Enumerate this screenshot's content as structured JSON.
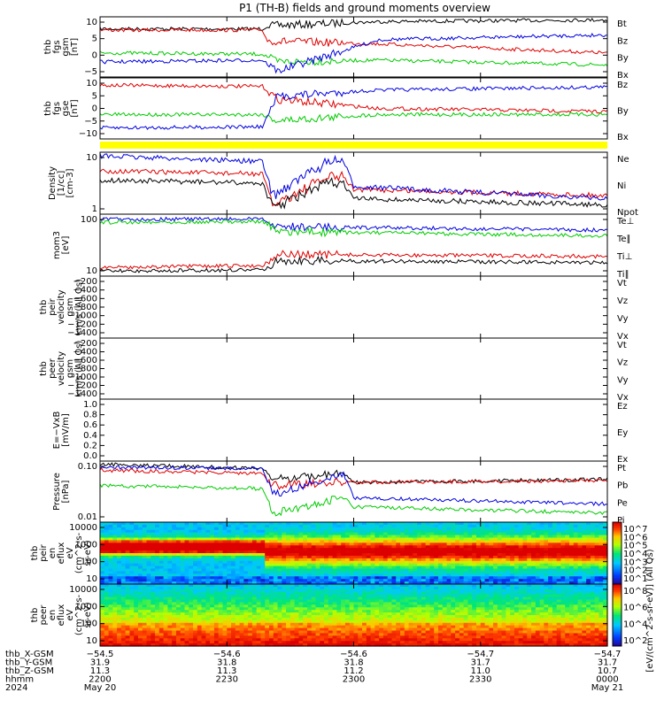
{
  "title": "P1 (TH-B) fields and ground moments overview",
  "colors": {
    "black": "#000000",
    "red": "#e00000",
    "green": "#00cc00",
    "blue": "#0000e0",
    "yellow": "#ffff00"
  },
  "chart_data": [
    {
      "type": "line",
      "panel": "fgs_gsm",
      "ylabel": [
        "thb",
        "fgs",
        "gsm",
        "[nT]"
      ],
      "yticks": [
        "10",
        "5",
        "0",
        "−5"
      ],
      "ylim": [
        -7,
        13
      ],
      "legend": [
        "Bt",
        "Bz",
        "By",
        "Bx"
      ],
      "series": [
        {
          "name": "Bt",
          "color": "#000000"
        },
        {
          "name": "Bz",
          "color": "#e00000"
        },
        {
          "name": "By",
          "color": "#00cc00"
        },
        {
          "name": "Bx",
          "color": "#0000e0"
        }
      ]
    },
    {
      "type": "line",
      "panel": "fgs_gse",
      "ylabel": [
        "thb",
        "fgs",
        "gse",
        "[nT]"
      ],
      "yticks": [
        "10",
        "5",
        "0",
        "−5",
        "−10"
      ],
      "ylim": [
        -12,
        11
      ],
      "legend": [
        "Bz",
        "By",
        "Bx"
      ],
      "series": [
        {
          "name": "Bz",
          "color": "#e00000"
        },
        {
          "name": "By",
          "color": "#00cc00"
        },
        {
          "name": "Bx",
          "color": "#0000e0"
        }
      ]
    },
    {
      "type": "line",
      "panel": "density",
      "ylabel": [
        "Density",
        "[1/cc]",
        "[cm-3]"
      ],
      "yticks": [
        "10",
        "1"
      ],
      "log": true,
      "legend": [
        "Ne",
        "Ni",
        "Npot"
      ],
      "series": [
        {
          "name": "Ne",
          "color": "#e00000"
        },
        {
          "name": "Ni",
          "color": "#000000"
        },
        {
          "name": "Npot",
          "color": "#0000e0"
        }
      ]
    },
    {
      "type": "line",
      "panel": "temperature",
      "ylabel": [
        "mom3",
        "[eV]"
      ],
      "yticks": [
        "100",
        "10"
      ],
      "log": true,
      "legend": [
        "Te⊥",
        "Te∥",
        "Ti⊥",
        "Ti∥"
      ],
      "series": [
        {
          "name": "Te⊥",
          "color": "#e00000"
        },
        {
          "name": "Te∥",
          "color": "#000000"
        },
        {
          "name": "Ti⊥",
          "color": "#0000e0"
        },
        {
          "name": "Ti∥",
          "color": "#00cc00"
        }
      ]
    },
    {
      "type": "line",
      "panel": "peir_velocity",
      "ylabel": [
        "thb",
        "peir",
        "velocity",
        "gsm",
        "km/s (All Qs)"
      ],
      "yticks": [
        "−200",
        "−400",
        "−600",
        "−800",
        "−1000",
        "−1200",
        "−1400"
      ],
      "ylim": [
        -1450,
        -100
      ],
      "legend": [
        "Vt",
        "Vz",
        "Vy",
        "Vx"
      ]
    },
    {
      "type": "line",
      "panel": "peer_velocity",
      "ylabel": [
        "thb",
        "peer",
        "velocity",
        "gsm",
        "km/s (All Qs)"
      ],
      "yticks": [
        "−200",
        "−400",
        "−600",
        "−800",
        "−1000",
        "−1200",
        "−1400"
      ],
      "ylim": [
        -1450,
        -100
      ],
      "legend": [
        "Vt",
        "Vz",
        "Vy",
        "Vx"
      ]
    },
    {
      "type": "line",
      "panel": "efield",
      "ylabel": [
        "E=−VxB",
        "[mV/m]"
      ],
      "yticks": [
        "1.0",
        "0.8",
        "0.6",
        "0.4",
        "0.2",
        "0.0"
      ],
      "ylim": [
        0,
        1
      ],
      "legend": [
        "Ez",
        "Ey",
        "Ex"
      ]
    },
    {
      "type": "line",
      "panel": "pressure",
      "ylabel": [
        "Pressure",
        "[nPa]"
      ],
      "yticks": [
        "0.10",
        "0.01"
      ],
      "log": true,
      "legend": [
        "Pt",
        "Pb",
        "Pe",
        "Pi"
      ],
      "series": [
        {
          "name": "Pt",
          "color": "#000000"
        },
        {
          "name": "Pb",
          "color": "#e00000"
        },
        {
          "name": "Pe",
          "color": "#00cc00"
        },
        {
          "name": "Pi",
          "color": "#0000e0"
        }
      ]
    },
    {
      "type": "heatmap",
      "panel": "peir_eflux",
      "ylabel": [
        "thb",
        "peir",
        "en",
        "eflux",
        "eV",
        "(cm^2-s-",
        "sr-eV)"
      ],
      "yticks": [
        "10000",
        "1000",
        "100",
        "10"
      ],
      "log": true,
      "colorbar_ticks": [
        "10^7",
        "10^6",
        "10^5",
        "10^4",
        "10^3",
        "10^2",
        "10^1"
      ]
    },
    {
      "type": "heatmap",
      "panel": "peer_eflux",
      "ylabel": [
        "thb",
        "peer",
        "en",
        "eflux",
        "eV",
        "(cm^2-s-",
        "sr-eV)"
      ],
      "yticks": [
        "10000",
        "1000",
        "100",
        "10"
      ],
      "log": true,
      "colorbar_ticks": [
        "10^8",
        "10^6",
        "10^4",
        "10^2"
      ]
    }
  ],
  "colorbar_label": "[eV/(cm^2-s-sr-eV)] (All Qs)",
  "time_axis": {
    "rows": [
      {
        "label": "thb_X-GSM",
        "values": [
          "−54.5",
          "−54.6",
          "−54.6",
          "−54.7",
          "−54.7"
        ]
      },
      {
        "label": "thb_Y-GSM",
        "values": [
          "31.9",
          "31.8",
          "31.8",
          "31.7",
          "31.7"
        ]
      },
      {
        "label": "thb_Z-GSM",
        "values": [
          "11.3",
          "11.3",
          "11.2",
          "11.0",
          "10.7"
        ]
      },
      {
        "label": "hhmm",
        "values": [
          "2200",
          "2230",
          "2300",
          "2330",
          "0000"
        ]
      },
      {
        "label": "2024",
        "values": [
          "May 20",
          "",
          "",
          "",
          "May 21"
        ]
      }
    ]
  }
}
